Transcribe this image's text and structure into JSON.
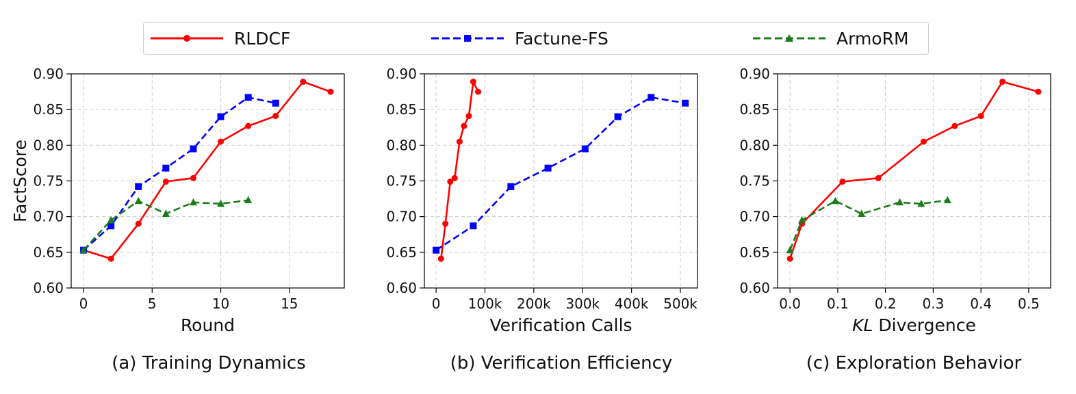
{
  "legend": {
    "items": [
      {
        "label": "RLDCF",
        "color": "#ff0000",
        "marker": "circle",
        "dash": "solid"
      },
      {
        "label": "Factune-FS",
        "color": "#0000ff",
        "marker": "square",
        "dash": "dashed"
      },
      {
        "label": "ArmoRM",
        "color": "#1a7d1a",
        "marker": "triangle",
        "dash": "dashed"
      }
    ]
  },
  "y_axis": {
    "label": "FactScore",
    "ticks": [
      "0.60",
      "0.65",
      "0.70",
      "0.75",
      "0.80",
      "0.85",
      "0.90"
    ],
    "ylim": [
      0.6,
      0.9
    ]
  },
  "chart_data": [
    {
      "type": "line",
      "title": "(a) Training Dynamics",
      "xlabel": "Round",
      "ylabel": "FactScore",
      "xlim": [
        -0.9,
        19
      ],
      "ylim": [
        0.6,
        0.9
      ],
      "xticks": [
        0,
        5,
        10,
        15
      ],
      "xtick_labels": [
        "0",
        "5",
        "10",
        "15"
      ],
      "grid": true,
      "series": [
        {
          "name": "RLDCF",
          "x": [
            0,
            2,
            4,
            6,
            8,
            10,
            12,
            14,
            16,
            18
          ],
          "y": [
            0.653,
            0.641,
            0.69,
            0.749,
            0.754,
            0.805,
            0.827,
            0.841,
            0.889,
            0.875
          ]
        },
        {
          "name": "Factune-FS",
          "x": [
            0,
            2,
            4,
            6,
            8,
            10,
            12,
            14
          ],
          "y": [
            0.653,
            0.687,
            0.742,
            0.768,
            0.795,
            0.84,
            0.867,
            0.859
          ]
        },
        {
          "name": "ArmoRM",
          "x": [
            0,
            2,
            4,
            6,
            8,
            10,
            12
          ],
          "y": [
            0.653,
            0.695,
            0.722,
            0.704,
            0.72,
            0.718,
            0.723
          ]
        }
      ]
    },
    {
      "type": "line",
      "title": "(b) Verification Efficiency",
      "xlabel": "Verification Calls",
      "ylabel": "",
      "xlim": [
        -24000,
        535000
      ],
      "ylim": [
        0.6,
        0.9
      ],
      "xticks": [
        0,
        100000,
        200000,
        300000,
        400000,
        500000
      ],
      "xtick_labels": [
        "0",
        "100k",
        "200k",
        "300k",
        "400k",
        "500k"
      ],
      "grid": true,
      "series": [
        {
          "name": "RLDCF",
          "x": [
            10000,
            19000,
            29000,
            38000,
            48000,
            57000,
            67000,
            76000,
            86000
          ],
          "y": [
            0.641,
            0.69,
            0.749,
            0.754,
            0.805,
            0.827,
            0.841,
            0.889,
            0.875
          ]
        },
        {
          "name": "Factune-FS",
          "x": [
            0,
            76000,
            153000,
            229000,
            305000,
            372000,
            440000,
            510000
          ],
          "y": [
            0.653,
            0.687,
            0.742,
            0.768,
            0.795,
            0.84,
            0.867,
            0.859
          ]
        }
      ]
    },
    {
      "type": "line",
      "title": "(c) Exploration Behavior",
      "xlabel": "KL Divergence",
      "ylabel": "",
      "xlim": [
        -0.026,
        0.546
      ],
      "ylim": [
        0.6,
        0.9
      ],
      "xticks": [
        0.0,
        0.1,
        0.2,
        0.3,
        0.4,
        0.5
      ],
      "xtick_labels": [
        "0.0",
        "0.1",
        "0.2",
        "0.3",
        "0.4",
        "0.5"
      ],
      "grid": true,
      "series": [
        {
          "name": "RLDCF",
          "x": [
            0.0,
            0.025,
            0.11,
            0.185,
            0.28,
            0.345,
            0.4,
            0.445,
            0.52
          ],
          "y": [
            0.641,
            0.69,
            0.749,
            0.754,
            0.805,
            0.827,
            0.841,
            0.889,
            0.875
          ]
        },
        {
          "name": "ArmoRM",
          "x": [
            0.0,
            0.025,
            0.095,
            0.15,
            0.23,
            0.275,
            0.33
          ],
          "y": [
            0.653,
            0.695,
            0.722,
            0.704,
            0.72,
            0.718,
            0.723
          ]
        }
      ]
    }
  ]
}
